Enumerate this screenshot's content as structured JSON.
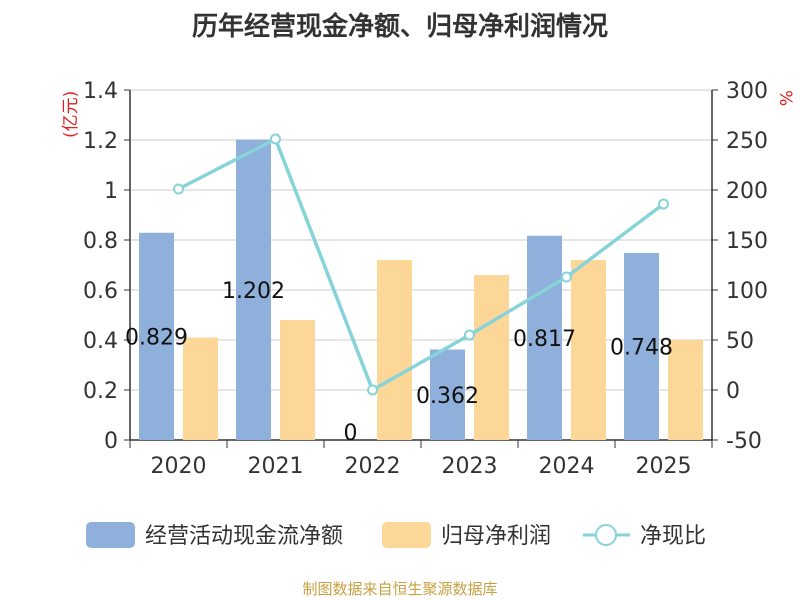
{
  "chart_data": {
    "type": "bar",
    "title": "历年经营现金净额、归母净利润情况",
    "categories": [
      "2020",
      "2021",
      "2022",
      "2023",
      "2024",
      "2025"
    ],
    "series": [
      {
        "name": "经营活动现金流净额",
        "kind": "bar",
        "axis": "left",
        "values": [
          0.829,
          1.202,
          0,
          0.362,
          0.817,
          0.748
        ],
        "labels": [
          "0.829",
          "1.202",
          "0",
          "0.362",
          "0.817",
          "0.748"
        ]
      },
      {
        "name": "归母净利润",
        "kind": "bar",
        "axis": "left",
        "values": [
          0.41,
          0.48,
          0.72,
          0.66,
          0.72,
          0.4
        ]
      },
      {
        "name": "净现比",
        "kind": "line",
        "axis": "right",
        "values": [
          201,
          251,
          0,
          55,
          113,
          186
        ]
      }
    ],
    "left_axis": {
      "label": "(亿元)",
      "min": 0,
      "max": 1.4,
      "ticks": [
        "0",
        "0.2",
        "0.4",
        "0.6",
        "0.8",
        "1",
        "1.2",
        "1.4"
      ]
    },
    "right_axis": {
      "label": "%",
      "min": -50,
      "max": 300,
      "ticks": [
        "-50",
        "0",
        "50",
        "100",
        "150",
        "200",
        "250",
        "300"
      ]
    },
    "legend_position": "bottom"
  },
  "colors": {
    "cash": "#8eb0db",
    "profit": "#fdd797",
    "ratio": "#86d3d9",
    "left_label": "#e02020",
    "right_label": "#e02020",
    "source": "#c8a042"
  },
  "source_text": "制图数据来自恒生聚源数据库"
}
